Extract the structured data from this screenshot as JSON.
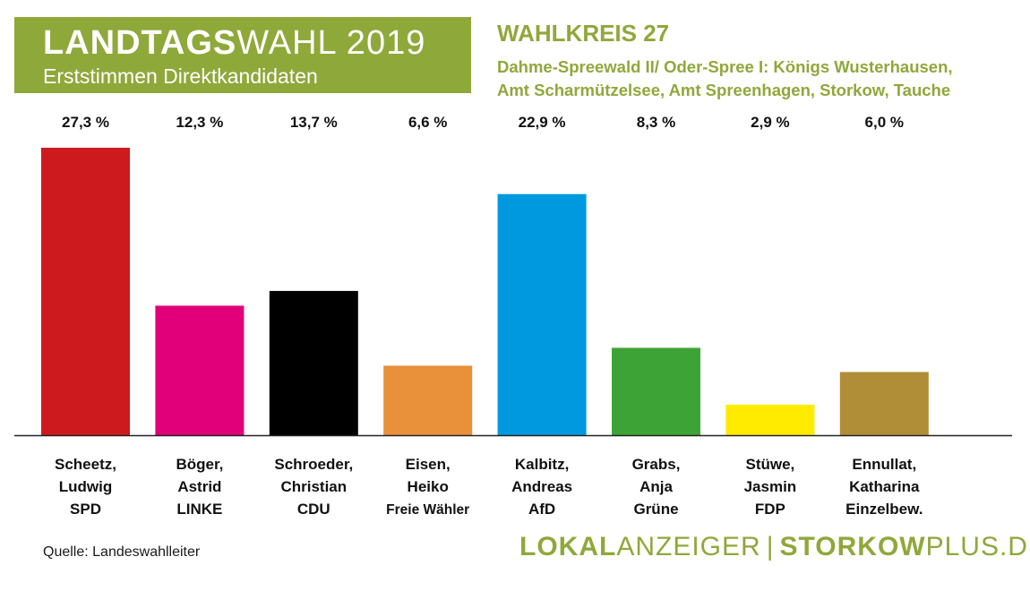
{
  "header": {
    "title_bold": "LANDTAGS",
    "title_rest": "WAHL 2019",
    "subtitle": "Erststimmen Direktkandidaten"
  },
  "district": {
    "title": "WAHLKREIS 27",
    "line1": "Dahme-Spreewald II/ Oder-Spree I: Königs Wusterhausen,",
    "line2": "Amt Scharmützelsee, Amt Spreenhagen, Storkow, Tauche"
  },
  "chart_data": {
    "type": "bar",
    "categories": [
      [
        "Scheetz,",
        "Ludwig",
        "SPD"
      ],
      [
        "Böger,",
        "Astrid",
        "LINKE"
      ],
      [
        "Schroeder,",
        "Christian",
        "CDU"
      ],
      [
        "Eisen,",
        "Heiko",
        "Freie Wähler"
      ],
      [
        "Kalbitz,",
        "Andreas",
        "AfD"
      ],
      [
        "Grabs,",
        "Anja",
        "Grüne"
      ],
      [
        "Stüwe,",
        "Jasmin",
        "FDP"
      ],
      [
        "Ennullat,",
        "Katharina",
        "Einzelbew."
      ]
    ],
    "values": [
      27.3,
      12.3,
      13.7,
      6.6,
      22.9,
      8.3,
      2.9,
      6.0
    ],
    "value_labels": [
      "27,3 %",
      "12,3 %",
      "13,7 %",
      "6,6 %",
      "22,9 %",
      "8,3 %",
      "2,9 %",
      "6,0 %"
    ],
    "colors": [
      "#cc1a1e",
      "#e2007a",
      "#000000",
      "#e8903a",
      "#0099e0",
      "#3ea337",
      "#ffeb00",
      "#b08d37"
    ],
    "ylim": [
      0,
      27.3
    ],
    "grid": false,
    "legend": "none"
  },
  "footer": {
    "source": "Quelle: Landeswahlleiter",
    "brand_a_bold": "LOKAL",
    "brand_a_rest": "ANZEIGER",
    "brand_sep": "|",
    "brand_b_bold": "STORKOW",
    "brand_b_rest": "PLUS.DE"
  }
}
